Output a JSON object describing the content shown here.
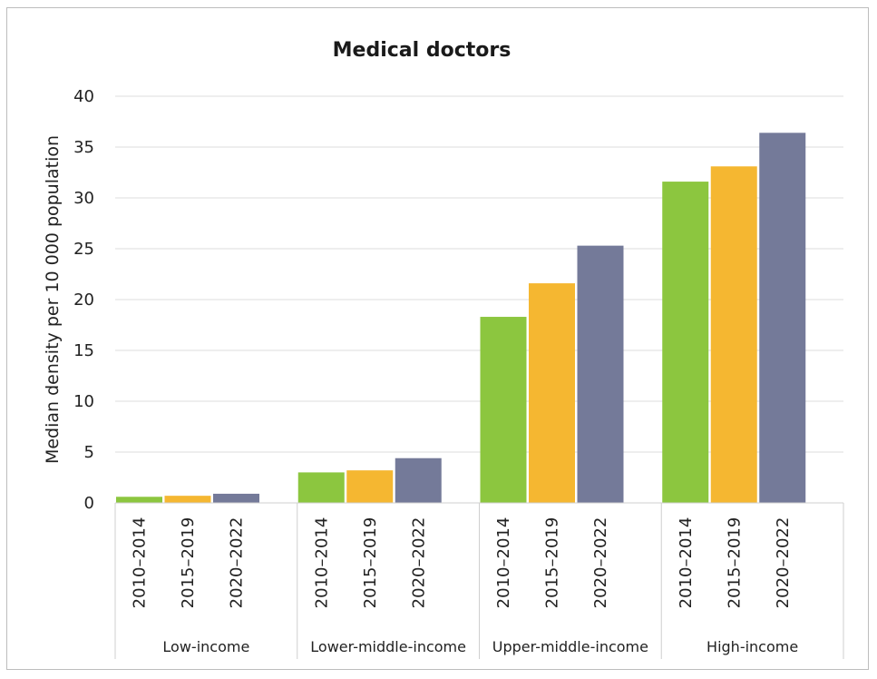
{
  "chart_data": {
    "type": "bar",
    "title": "Medical doctors",
    "ylabel": "Median density per 10 000 population",
    "xlabel": "",
    "ylim": [
      0,
      40
    ],
    "yticks": [
      0,
      5,
      10,
      15,
      20,
      25,
      30,
      35,
      40
    ],
    "grid": true,
    "groups": [
      {
        "name": "Low-income",
        "bars": [
          {
            "period": "2010–2014",
            "value": 0.6
          },
          {
            "period": "2015–2019",
            "value": 0.7
          },
          {
            "period": "2020–2022",
            "value": 0.9
          }
        ]
      },
      {
        "name": "Lower-middle-income",
        "bars": [
          {
            "period": "2010–2014",
            "value": 3.0
          },
          {
            "period": "2015–2019",
            "value": 3.2
          },
          {
            "period": "2020–2022",
            "value": 4.4
          }
        ]
      },
      {
        "name": "Upper-middle-income",
        "bars": [
          {
            "period": "2010–2014",
            "value": 18.3
          },
          {
            "period": "2015–2019",
            "value": 21.6
          },
          {
            "period": "2020–2022",
            "value": 25.3
          }
        ]
      },
      {
        "name": "High-income",
        "bars": [
          {
            "period": "2010–2014",
            "value": 31.6
          },
          {
            "period": "2015–2019",
            "value": 33.1
          },
          {
            "period": "2020–2022",
            "value": 36.4
          }
        ]
      }
    ],
    "colors": {
      "2010–2014": "#8cc63f",
      "2015–2019": "#f5b731",
      "2020–2022": "#747a99"
    }
  }
}
